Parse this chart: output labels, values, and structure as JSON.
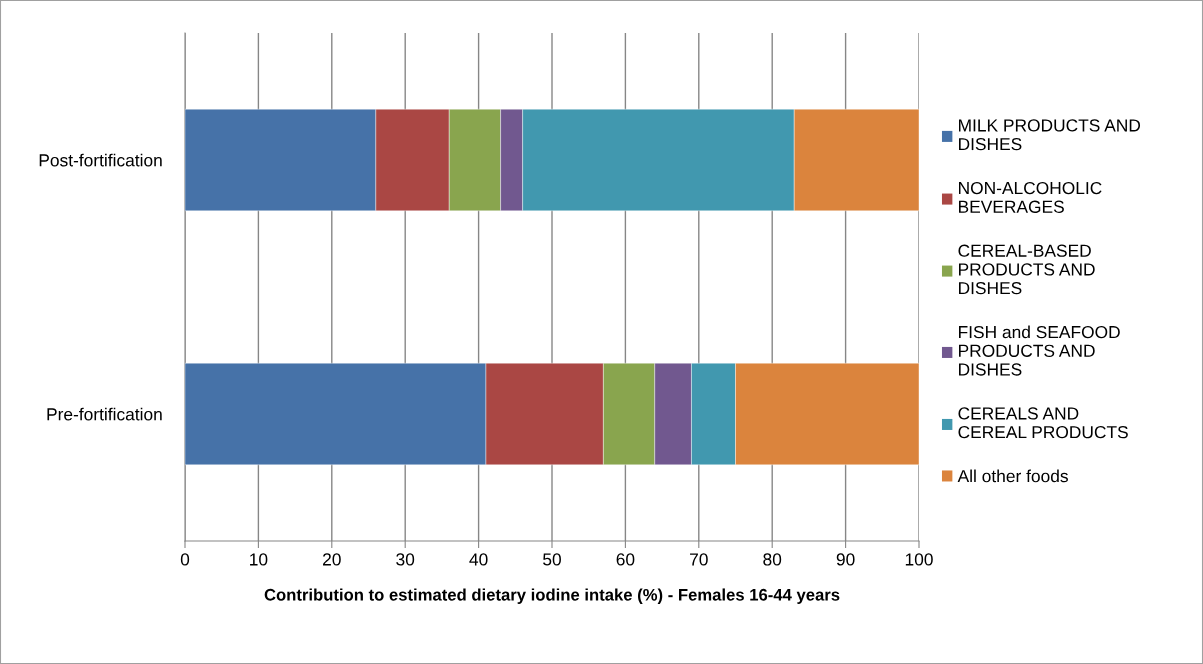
{
  "chart_data": {
    "type": "bar",
    "orientation": "horizontal",
    "stacked": true,
    "xlabel": "Contribution to estimated dietary iodine intake (%) - Females 16-44 years",
    "categories": [
      "Post-fortification",
      "Pre-fortification"
    ],
    "series": [
      {
        "name": "MILK PRODUCTS AND\nDISHES",
        "color": "#4672a8",
        "values": [
          26,
          41
        ]
      },
      {
        "name": "NON-ALCOHOLIC\nBEVERAGES",
        "color": "#aa4744",
        "values": [
          10,
          16
        ]
      },
      {
        "name": "CEREAL-BASED\nPRODUCTS AND\nDISHES",
        "color": "#89a54e",
        "values": [
          7,
          7
        ]
      },
      {
        "name": "FISH and SEAFOOD\nPRODUCTS AND\nDISHES",
        "color": "#71588f",
        "values": [
          3,
          5
        ]
      },
      {
        "name": "CEREALS AND\nCEREAL PRODUCTS",
        "color": "#4198af",
        "values": [
          37,
          6
        ]
      },
      {
        "name": "All other foods",
        "color": "#db843d",
        "values": [
          17,
          25
        ]
      }
    ],
    "xlim": [
      0,
      100
    ],
    "xticks": [
      0,
      10,
      20,
      30,
      40,
      50,
      60,
      70,
      80,
      90,
      100
    ],
    "grid": "x",
    "legend": "right"
  }
}
